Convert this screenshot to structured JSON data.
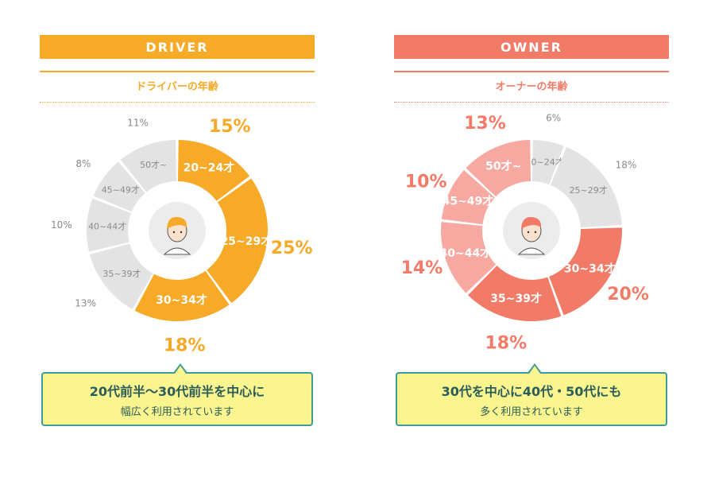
{
  "driver": {
    "header": "DRIVER",
    "subtitle": "ドライバーの年齢",
    "callout": {
      "line1": "20代前半～30代前半を中心に",
      "line2": "幅広く利用されています"
    },
    "colors": {
      "accent": "#f7a928",
      "highlight": "#f7a928",
      "muted": "#e3e3e3"
    }
  },
  "owner": {
    "header": "OWNER",
    "subtitle": "オーナーの年齢",
    "callout": {
      "line1": "30代を中心に40代・50代にも",
      "line2": "多く利用されています"
    },
    "colors": {
      "accent": "#f27b68",
      "strong": "#f27b68",
      "medium": "#f7a8a0",
      "muted": "#e3e3e3"
    }
  },
  "chart_data": [
    {
      "type": "pie",
      "title": "ドライバーの年齢",
      "categories": [
        "20~24才",
        "25~29才",
        "30~34才",
        "35~39才",
        "40~44才",
        "45~49才",
        "50才~"
      ],
      "values": [
        15,
        25,
        18,
        13,
        10,
        8,
        11
      ],
      "value_labels": [
        "15%",
        "25%",
        "18%",
        "13%",
        "10%",
        "8%",
        "11%"
      ],
      "highlighted": [
        true,
        true,
        true,
        false,
        false,
        false,
        false
      ],
      "colors": [
        "#f7a928",
        "#f7a928",
        "#f7a928",
        "#e3e3e3",
        "#e3e3e3",
        "#e3e3e3",
        "#e3e3e3"
      ]
    },
    {
      "type": "pie",
      "title": "オーナーの年齢",
      "categories": [
        "20~24才",
        "25~29才",
        "30~34才",
        "35~39才",
        "40~44才",
        "45~49才",
        "50才~"
      ],
      "values": [
        6,
        18,
        20,
        18,
        14,
        10,
        13
      ],
      "value_labels": [
        "6%",
        "18%",
        "20%",
        "18%",
        "14%",
        "10%",
        "13%"
      ],
      "highlighted": [
        false,
        false,
        true,
        true,
        true,
        true,
        true
      ],
      "colors": [
        "#e3e3e3",
        "#e3e3e3",
        "#f27b68",
        "#f27b68",
        "#f7a8a0",
        "#f7a8a0",
        "#f7a8a0"
      ]
    }
  ]
}
